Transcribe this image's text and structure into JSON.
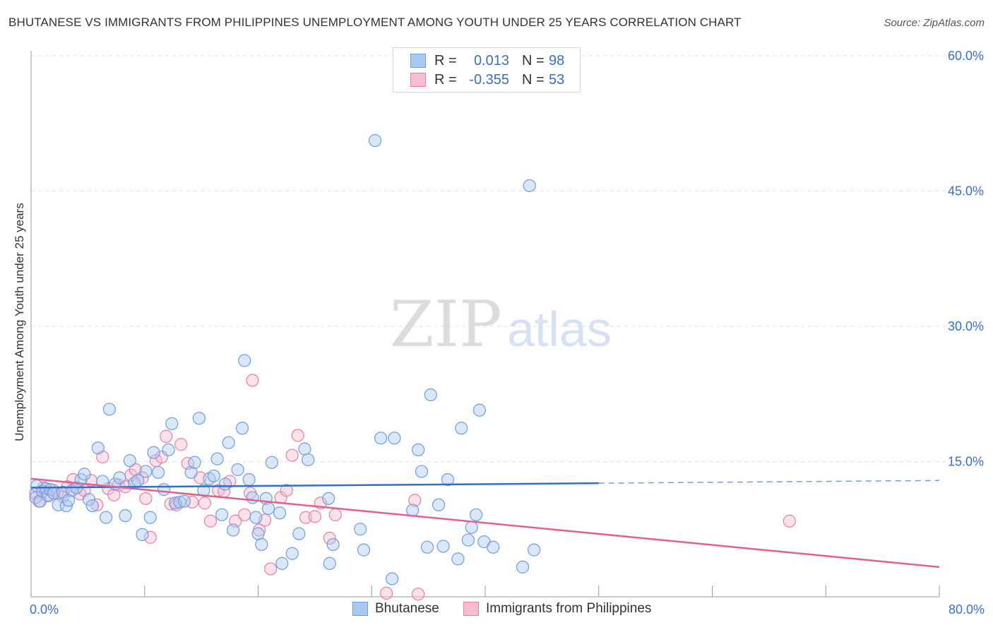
{
  "title": "BHUTANESE VS IMMIGRANTS FROM PHILIPPINES UNEMPLOYMENT AMONG YOUTH UNDER 25 YEARS CORRELATION CHART",
  "source": "Source: ZipAtlas.com",
  "watermark": {
    "zip": "ZIP",
    "atlas": "atlas"
  },
  "legend": {
    "r_label": "R =",
    "n_label": "N =",
    "series": [
      {
        "name": "Bhutanese",
        "r": "0.013",
        "n": "98",
        "color": "#6f9ee0",
        "fill": "#aac9f0"
      },
      {
        "name": "Immigrants from Philippines",
        "r": "-0.355",
        "n": "53",
        "color": "#e77fa3",
        "fill": "#f6bcd0"
      }
    ]
  },
  "chart_data": {
    "type": "scatter",
    "title": "BHUTANESE VS IMMIGRANTS FROM PHILIPPINES UNEMPLOYMENT AMONG YOUTH UNDER 25 YEARS CORRELATION CHART",
    "xlabel": "",
    "ylabel": "Unemployment Among Youth under 25 years",
    "xlim": [
      0,
      80
    ],
    "ylim": [
      0,
      60
    ],
    "x_tick_labels": [
      "0.0%",
      "80.0%"
    ],
    "y_tick_labels": [
      "15.0%",
      "30.0%",
      "45.0%",
      "60.0%"
    ],
    "y_ticks": [
      15,
      30,
      45,
      60
    ],
    "grid": true,
    "series": [
      {
        "name": "Bhutanese",
        "trend": {
          "x0": 0,
          "y0": 12.1,
          "x1": 50,
          "y1": 12.6,
          "dashed_to_x": 80,
          "dashed_to_y": 12.9
        },
        "points": [
          [
            0.4,
            11.0
          ],
          [
            0.5,
            12.3
          ],
          [
            0.8,
            10.6
          ],
          [
            1.0,
            11.7
          ],
          [
            1.3,
            12.0
          ],
          [
            1.5,
            11.2
          ],
          [
            1.7,
            11.9
          ],
          [
            2.0,
            11.5
          ],
          [
            2.4,
            10.2
          ],
          [
            2.8,
            11.6
          ],
          [
            3.1,
            10.1
          ],
          [
            3.3,
            10.7
          ],
          [
            3.6,
            11.8
          ],
          [
            4.0,
            12.1
          ],
          [
            4.4,
            13.0
          ],
          [
            4.7,
            13.6
          ],
          [
            5.1,
            10.8
          ],
          [
            5.4,
            10.1
          ],
          [
            5.9,
            16.5
          ],
          [
            6.3,
            12.8
          ],
          [
            6.6,
            8.8
          ],
          [
            6.9,
            20.8
          ],
          [
            7.4,
            12.5
          ],
          [
            7.8,
            13.2
          ],
          [
            8.3,
            9.0
          ],
          [
            8.7,
            15.1
          ],
          [
            9.1,
            12.6
          ],
          [
            9.4,
            12.9
          ],
          [
            9.8,
            6.9
          ],
          [
            10.1,
            13.9
          ],
          [
            10.5,
            8.8
          ],
          [
            10.8,
            16.0
          ],
          [
            11.2,
            13.8
          ],
          [
            11.7,
            11.9
          ],
          [
            12.1,
            16.3
          ],
          [
            12.4,
            19.2
          ],
          [
            12.7,
            10.4
          ],
          [
            13.1,
            10.5
          ],
          [
            13.5,
            10.6
          ],
          [
            14.1,
            13.8
          ],
          [
            14.4,
            14.9
          ],
          [
            14.8,
            19.8
          ],
          [
            15.2,
            11.8
          ],
          [
            15.7,
            13.1
          ],
          [
            16.1,
            13.4
          ],
          [
            16.4,
            15.3
          ],
          [
            16.8,
            9.1
          ],
          [
            17.1,
            12.5
          ],
          [
            17.4,
            17.1
          ],
          [
            17.8,
            7.4
          ],
          [
            18.2,
            14.1
          ],
          [
            18.6,
            18.7
          ],
          [
            18.8,
            26.2
          ],
          [
            19.2,
            13.0
          ],
          [
            19.5,
            11.0
          ],
          [
            19.8,
            8.8
          ],
          [
            20.0,
            7.0
          ],
          [
            20.3,
            5.8
          ],
          [
            20.7,
            10.9
          ],
          [
            20.9,
            9.8
          ],
          [
            21.2,
            14.9
          ],
          [
            21.9,
            9.3
          ],
          [
            22.1,
            3.7
          ],
          [
            23.0,
            4.8
          ],
          [
            23.6,
            7.0
          ],
          [
            24.1,
            16.4
          ],
          [
            24.4,
            15.2
          ],
          [
            26.2,
            10.9
          ],
          [
            26.3,
            3.7
          ],
          [
            26.6,
            5.8
          ],
          [
            29.0,
            7.5
          ],
          [
            29.3,
            5.2
          ],
          [
            30.3,
            50.6
          ],
          [
            30.8,
            17.6
          ],
          [
            31.8,
            2.0
          ],
          [
            32.0,
            17.6
          ],
          [
            33.6,
            9.6
          ],
          [
            34.1,
            16.3
          ],
          [
            34.4,
            13.9
          ],
          [
            34.9,
            5.5
          ],
          [
            35.2,
            22.4
          ],
          [
            35.9,
            10.2
          ],
          [
            36.3,
            5.6
          ],
          [
            36.7,
            13.0
          ],
          [
            37.6,
            4.2
          ],
          [
            37.9,
            18.7
          ],
          [
            38.5,
            6.3
          ],
          [
            38.8,
            7.7
          ],
          [
            39.2,
            9.1
          ],
          [
            39.5,
            20.7
          ],
          [
            39.9,
            6.1
          ],
          [
            40.7,
            5.5
          ],
          [
            43.3,
            3.3
          ],
          [
            43.9,
            45.6
          ],
          [
            44.3,
            5.2
          ]
        ]
      },
      {
        "name": "Immigrants from Philippines",
        "trend": {
          "x0": 0,
          "y0": 13.1,
          "x1": 80,
          "y1": 3.3
        },
        "points": [
          [
            0.4,
            11.5
          ],
          [
            0.7,
            10.6
          ],
          [
            1.1,
            12.1
          ],
          [
            1.5,
            11.3
          ],
          [
            2.0,
            11.8
          ],
          [
            2.3,
            11.5
          ],
          [
            2.8,
            11.1
          ],
          [
            3.2,
            12.2
          ],
          [
            3.7,
            13.0
          ],
          [
            4.3,
            11.4
          ],
          [
            4.7,
            11.8
          ],
          [
            5.3,
            12.9
          ],
          [
            5.8,
            10.2
          ],
          [
            6.3,
            15.5
          ],
          [
            6.8,
            12.0
          ],
          [
            7.3,
            11.3
          ],
          [
            7.7,
            12.4
          ],
          [
            8.3,
            12.2
          ],
          [
            8.8,
            13.5
          ],
          [
            9.2,
            14.1
          ],
          [
            9.8,
            13.2
          ],
          [
            10.1,
            10.9
          ],
          [
            10.5,
            6.6
          ],
          [
            11.0,
            15.1
          ],
          [
            11.5,
            15.5
          ],
          [
            11.9,
            17.8
          ],
          [
            12.3,
            10.3
          ],
          [
            12.8,
            10.2
          ],
          [
            13.2,
            16.9
          ],
          [
            13.8,
            14.8
          ],
          [
            14.2,
            10.5
          ],
          [
            14.9,
            13.2
          ],
          [
            15.3,
            10.4
          ],
          [
            15.8,
            8.4
          ],
          [
            16.5,
            11.8
          ],
          [
            17.0,
            11.7
          ],
          [
            17.5,
            12.8
          ],
          [
            18.0,
            8.4
          ],
          [
            18.8,
            9.1
          ],
          [
            19.3,
            11.5
          ],
          [
            19.5,
            24.0
          ],
          [
            20.1,
            7.4
          ],
          [
            20.6,
            8.5
          ],
          [
            21.1,
            3.1
          ],
          [
            22.0,
            11.0
          ],
          [
            22.5,
            11.8
          ],
          [
            23.0,
            15.7
          ],
          [
            23.5,
            17.9
          ],
          [
            24.2,
            8.8
          ],
          [
            25.0,
            8.9
          ],
          [
            25.5,
            10.4
          ],
          [
            26.3,
            6.5
          ],
          [
            26.8,
            9.1
          ],
          [
            31.3,
            0.4
          ],
          [
            33.8,
            10.7
          ],
          [
            34.1,
            0.3
          ],
          [
            66.8,
            8.4
          ]
        ]
      }
    ]
  }
}
